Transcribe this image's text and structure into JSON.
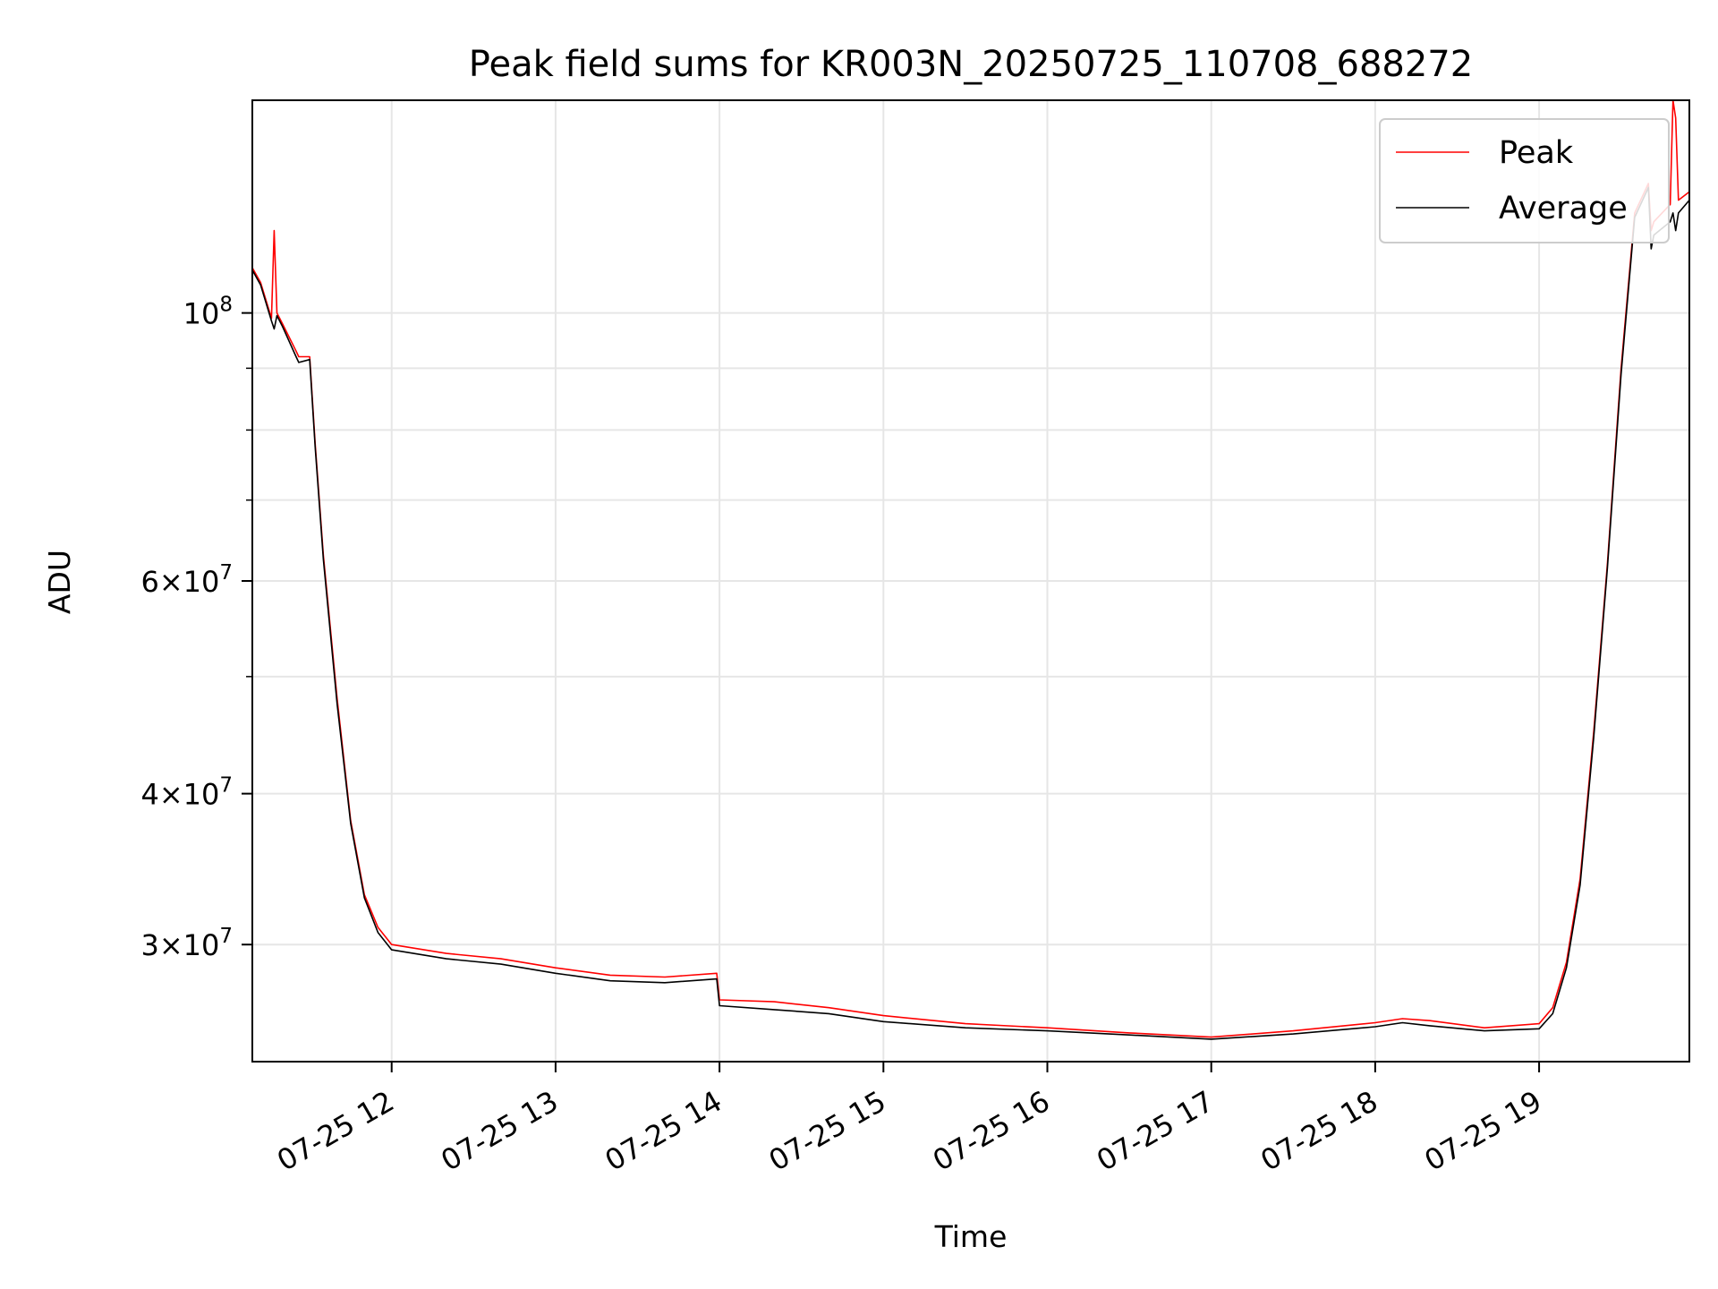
{
  "chart_data": {
    "type": "line",
    "title": "Peak field sums for KR003N_20250725_110708_688272",
    "xlabel": "Time",
    "ylabel": "ADU",
    "yscale": "log",
    "ylim": [
      24000000,
      150000000
    ],
    "xlim": [
      "2025-07-25 11:09",
      "2025-07-25 19:55"
    ],
    "grid": true,
    "legend_position": "top-right",
    "x_ticks": [
      {
        "t": "2025-07-25 12:00",
        "label": "07-25 12"
      },
      {
        "t": "2025-07-25 13:00",
        "label": "07-25 13"
      },
      {
        "t": "2025-07-25 14:00",
        "label": "07-25 14"
      },
      {
        "t": "2025-07-25 15:00",
        "label": "07-25 15"
      },
      {
        "t": "2025-07-25 16:00",
        "label": "07-25 16"
      },
      {
        "t": "2025-07-25 17:00",
        "label": "07-25 17"
      },
      {
        "t": "2025-07-25 18:00",
        "label": "07-25 18"
      },
      {
        "t": "2025-07-25 19:00",
        "label": "07-25 19"
      }
    ],
    "y_ticks": [
      {
        "value": 100000000,
        "label": "10",
        "sup": "8"
      },
      {
        "value": 60000000,
        "label": "6×10",
        "sup": "7"
      },
      {
        "value": 40000000,
        "label": "4×10",
        "sup": "7"
      },
      {
        "value": 30000000,
        "label": "3×10",
        "sup": "7"
      }
    ],
    "y_minor_ticks": [
      50000000,
      70000000,
      80000000,
      90000000
    ],
    "series": [
      {
        "name": "Peak",
        "color": "#ff0000",
        "x": [
          "2025-07-25 11:09",
          "2025-07-25 11:12",
          "2025-07-25 11:16",
          "2025-07-25 11:17",
          "2025-07-25 11:18",
          "2025-07-25 11:20",
          "2025-07-25 11:25",
          "2025-07-25 11:26",
          "2025-07-25 11:30",
          "2025-07-25 11:32",
          "2025-07-25 11:35",
          "2025-07-25 11:40",
          "2025-07-25 11:45",
          "2025-07-25 11:50",
          "2025-07-25 11:55",
          "2025-07-25 12:00",
          "2025-07-25 12:20",
          "2025-07-25 12:40",
          "2025-07-25 13:00",
          "2025-07-25 13:20",
          "2025-07-25 13:40",
          "2025-07-25 13:59",
          "2025-07-25 14:00",
          "2025-07-25 14:20",
          "2025-07-25 14:40",
          "2025-07-25 15:00",
          "2025-07-25 15:30",
          "2025-07-25 16:00",
          "2025-07-25 16:30",
          "2025-07-25 17:00",
          "2025-07-25 17:30",
          "2025-07-25 18:00",
          "2025-07-25 18:10",
          "2025-07-25 18:20",
          "2025-07-25 18:40",
          "2025-07-25 19:00",
          "2025-07-25 19:05",
          "2025-07-25 19:10",
          "2025-07-25 19:15",
          "2025-07-25 19:20",
          "2025-07-25 19:25",
          "2025-07-25 19:30",
          "2025-07-25 19:35",
          "2025-07-25 19:40",
          "2025-07-25 19:41",
          "2025-07-25 19:42",
          "2025-07-25 19:48",
          "2025-07-25 19:49",
          "2025-07-25 19:50",
          "2025-07-25 19:51",
          "2025-07-25 19:55"
        ],
        "values": [
          109000000,
          106000000,
          99000000,
          117000000,
          100000000,
          98000000,
          93000000,
          92000000,
          92000000,
          78000000,
          63000000,
          48000000,
          38000000,
          33000000,
          31000000,
          30000000,
          29500000,
          29200000,
          28700000,
          28300000,
          28200000,
          28400000,
          27000000,
          26900000,
          26600000,
          26200000,
          25800000,
          25600000,
          25350000,
          25150000,
          25450000,
          25850000,
          26050000,
          25950000,
          25600000,
          25800000,
          26600000,
          29000000,
          34000000,
          45000000,
          62000000,
          90000000,
          121000000,
          128000000,
          117000000,
          119000000,
          123000000,
          150000000,
          145000000,
          124000000,
          126000000
        ]
      },
      {
        "name": "Average",
        "color": "#000000",
        "x": [
          "2025-07-25 11:09",
          "2025-07-25 11:12",
          "2025-07-25 11:16",
          "2025-07-25 11:17",
          "2025-07-25 11:18",
          "2025-07-25 11:20",
          "2025-07-25 11:25",
          "2025-07-25 11:26",
          "2025-07-25 11:30",
          "2025-07-25 11:32",
          "2025-07-25 11:35",
          "2025-07-25 11:40",
          "2025-07-25 11:45",
          "2025-07-25 11:50",
          "2025-07-25 11:55",
          "2025-07-25 12:00",
          "2025-07-25 12:20",
          "2025-07-25 12:40",
          "2025-07-25 13:00",
          "2025-07-25 13:20",
          "2025-07-25 13:40",
          "2025-07-25 13:59",
          "2025-07-25 14:00",
          "2025-07-25 14:20",
          "2025-07-25 14:40",
          "2025-07-25 15:00",
          "2025-07-25 15:30",
          "2025-07-25 16:00",
          "2025-07-25 16:30",
          "2025-07-25 17:00",
          "2025-07-25 17:30",
          "2025-07-25 18:00",
          "2025-07-25 18:10",
          "2025-07-25 18:20",
          "2025-07-25 18:40",
          "2025-07-25 19:00",
          "2025-07-25 19:05",
          "2025-07-25 19:10",
          "2025-07-25 19:15",
          "2025-07-25 19:20",
          "2025-07-25 19:25",
          "2025-07-25 19:30",
          "2025-07-25 19:35",
          "2025-07-25 19:40",
          "2025-07-25 19:41",
          "2025-07-25 19:42",
          "2025-07-25 19:48",
          "2025-07-25 19:49",
          "2025-07-25 19:50",
          "2025-07-25 19:51",
          "2025-07-25 19:55"
        ],
        "values": [
          108500000,
          105500000,
          98500000,
          97000000,
          99500000,
          97500000,
          92000000,
          91000000,
          91500000,
          77500000,
          62500000,
          47500000,
          37800000,
          32800000,
          30700000,
          29700000,
          29200000,
          28900000,
          28400000,
          28000000,
          27900000,
          28100000,
          26700000,
          26500000,
          26300000,
          25900000,
          25600000,
          25450000,
          25250000,
          25050000,
          25300000,
          25650000,
          25850000,
          25700000,
          25450000,
          25550000,
          26300000,
          28700000,
          33600000,
          44500000,
          61500000,
          89000000,
          120000000,
          127000000,
          113000000,
          116000000,
          119000000,
          121000000,
          117000000,
          121000000,
          124000000
        ]
      }
    ]
  }
}
